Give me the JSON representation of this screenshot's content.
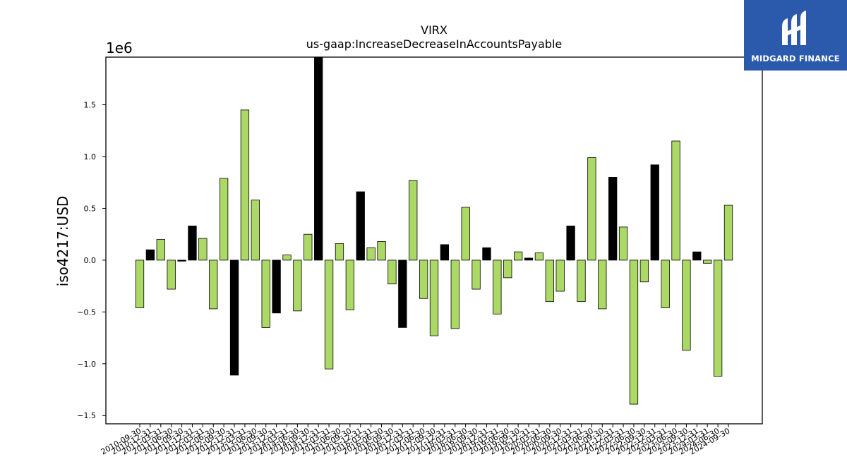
{
  "brand": {
    "name": "MIDGARD FINANCE",
    "background": "#2b5aad",
    "icon": "midgard-logo-icon"
  },
  "colors": {
    "positive_bar": "#acd866",
    "negative_bar": "#000000",
    "axes": "#000000"
  },
  "chart_data": {
    "type": "bar",
    "title": "VIRX",
    "subtitle": "us-gaap:IncreaseDecreaseInAccountsPayable",
    "xlabel": "",
    "ylabel": "iso4217:USD",
    "scale_label": "1e6",
    "ylim": [
      -1.58,
      1.96
    ],
    "yticks": [
      -1.5,
      -1.0,
      -0.5,
      0.0,
      0.5,
      1.0,
      1.5
    ],
    "ytick_labels": [
      "−1.5",
      "−1.0",
      "−0.5",
      "0.0",
      "0.5",
      "1.0",
      "1.5"
    ],
    "grid": false,
    "categories": [
      "2010-09-30",
      "2010-12-31",
      "2011-03-31",
      "2011-06-30",
      "2011-09-30",
      "2011-12-31",
      "2012-03-31",
      "2012-06-30",
      "2012-09-30",
      "2012-12-31",
      "2013-03-31",
      "2013-06-30",
      "2013-09-30",
      "2013-12-31",
      "2014-03-31",
      "2014-06-30",
      "2014-09-30",
      "2014-12-31",
      "2015-03-31",
      "2015-06-30",
      "2015-09-30",
      "2015-12-31",
      "2016-03-31",
      "2016-06-30",
      "2016-09-30",
      "2016-12-31",
      "2017-03-31",
      "2017-06-30",
      "2017-09-30",
      "2017-12-31",
      "2018-03-31",
      "2018-06-30",
      "2018-09-30",
      "2018-12-31",
      "2019-03-31",
      "2019-06-30",
      "2019-09-30",
      "2019-12-31",
      "2020-03-31",
      "2020-06-30",
      "2020-09-30",
      "2020-12-31",
      "2021-03-31",
      "2021-06-30",
      "2021-09-30",
      "2021-12-31",
      "2022-03-31",
      "2022-06-30",
      "2022-09-30",
      "2022-12-31",
      "2023-03-31",
      "2023-06-30",
      "2023-09-30",
      "2023-12-31",
      "2024-03-31",
      "2024-06-30",
      "2024-09-30"
    ],
    "values": [
      -0.46,
      0.1,
      0.2,
      -0.28,
      -0.01,
      0.33,
      0.21,
      -0.47,
      0.79,
      -1.11,
      1.45,
      0.58,
      -0.65,
      -0.51,
      0.05,
      -0.49,
      0.25,
      1.96,
      -1.05,
      0.16,
      -0.48,
      0.66,
      0.12,
      0.18,
      -0.23,
      -0.65,
      0.77,
      -0.37,
      -0.73,
      0.15,
      -0.66,
      0.51,
      -0.28,
      0.12,
      -0.52,
      -0.17,
      0.08,
      0.02,
      0.07,
      -0.4,
      -0.3,
      0.33,
      -0.4,
      0.99,
      -0.47,
      0.8,
      0.32,
      -1.39,
      -0.21,
      0.92,
      -0.46,
      1.15,
      -0.87,
      0.08,
      -0.03,
      -1.12,
      0.53
    ],
    "highlighted": [
      false,
      true,
      false,
      false,
      true,
      true,
      false,
      false,
      false,
      true,
      false,
      false,
      false,
      true,
      false,
      false,
      false,
      true,
      false,
      false,
      false,
      true,
      false,
      false,
      false,
      true,
      false,
      false,
      false,
      true,
      false,
      false,
      false,
      true,
      false,
      false,
      false,
      true,
      false,
      false,
      false,
      true,
      false,
      false,
      false,
      true,
      false,
      false,
      false,
      true,
      false,
      false,
      false,
      true,
      false,
      false,
      false
    ]
  }
}
